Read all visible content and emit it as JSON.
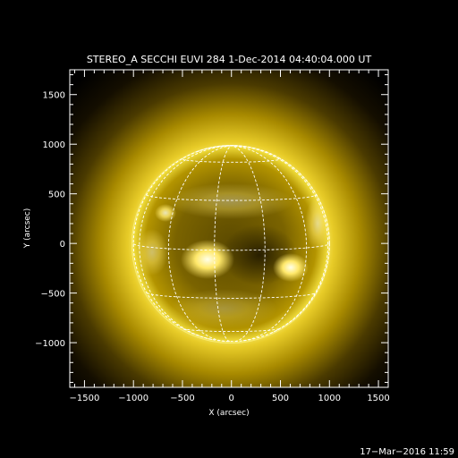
{
  "title": "STEREO_A SECCHI EUVI 284  1-Dec-2014 04:40:04.000 UT",
  "xlabel": "X (arcsec)",
  "ylabel": "Y (arcsec)",
  "x_ticks": [
    "−1500",
    "−1000",
    "−500",
    "0",
    "500",
    "1000",
    "1500"
  ],
  "y_ticks": [
    "1500",
    "1000",
    "500",
    "0",
    "−500",
    "−1000"
  ],
  "x_range": [
    -1650,
    1600
  ],
  "y_range": [
    -1450,
    1750
  ],
  "solar_radius_arcsec": 1000,
  "grid_spacing_deg": 30,
  "timestamp": "17−Mar−2016 11:59",
  "colors": {
    "background": "#000000",
    "disk_mid": "#9b8100",
    "corona": "#f5e42a",
    "grid": "#ffffff"
  }
}
